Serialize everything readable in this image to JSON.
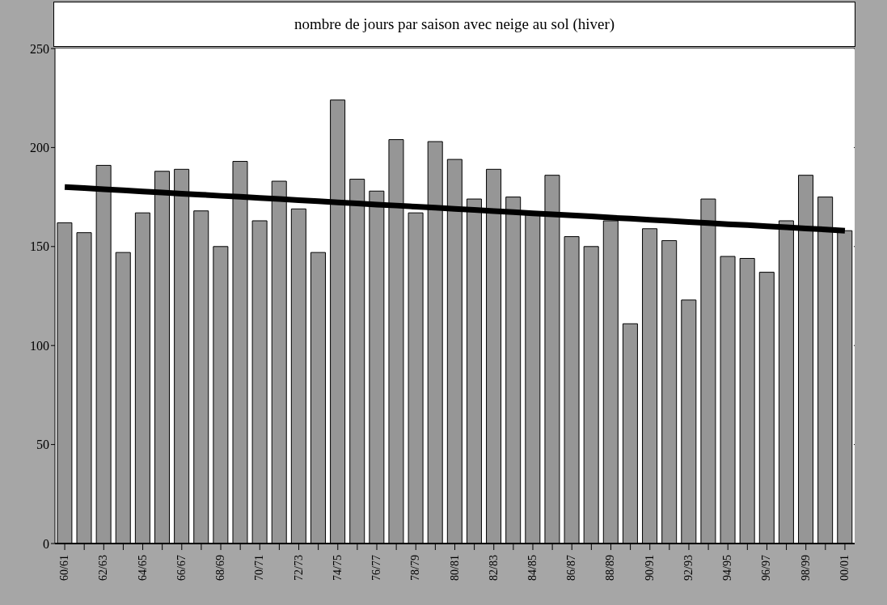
{
  "chart_data": {
    "type": "bar",
    "title": "nombre de jours par saison avec neige au sol (hiver)",
    "categories": [
      "60/61",
      null,
      "62/63",
      null,
      "64/65",
      null,
      "66/67",
      null,
      "68/69",
      null,
      "70/71",
      null,
      "72/73",
      null,
      "74/75",
      null,
      "76/77",
      null,
      "78/79",
      null,
      "80/81",
      null,
      "82/83",
      null,
      "84/85",
      null,
      "86/87",
      null,
      "88/89",
      null,
      "90/91",
      null,
      "92/93",
      null,
      "94/95",
      null,
      "96/97",
      null,
      "98/99",
      null,
      "00/01"
    ],
    "series": [
      {
        "color": "#969696",
        "values": [
          162,
          157,
          191,
          147,
          167,
          188,
          189,
          168,
          150,
          193,
          163,
          183,
          169,
          147,
          224,
          184,
          178,
          204,
          167,
          203,
          194,
          174,
          189,
          175,
          166,
          186,
          155,
          150,
          163,
          111,
          159,
          153,
          123,
          174,
          145,
          144,
          137,
          163,
          186,
          175,
          158
        ]
      },
      {
        "type": "line",
        "color": "#000000",
        "values": [
          180,
          179.5,
          178.9,
          178.4,
          177.8,
          177.3,
          176.7,
          176.2,
          175.6,
          175.1,
          174.5,
          174,
          173.4,
          172.9,
          172.3,
          171.8,
          171.2,
          170.7,
          170.1,
          169.6,
          169,
          168.5,
          167.9,
          167.4,
          166.8,
          166.3,
          165.7,
          165.2,
          164.6,
          164.1,
          163.5,
          163,
          162.4,
          161.9,
          161.3,
          160.8,
          160.2,
          159.7,
          159.1,
          158.6,
          158
        ]
      }
    ],
    "ylim": [
      0,
      250
    ],
    "yticks": [
      0,
      50,
      100,
      150,
      200,
      250
    ],
    "grid": "y"
  }
}
